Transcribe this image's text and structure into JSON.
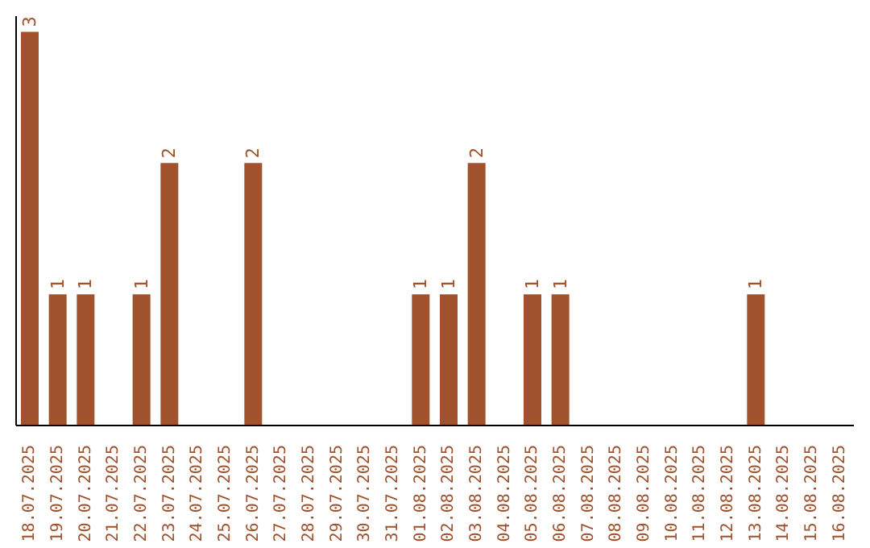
{
  "chart_data": {
    "type": "bar",
    "categories": [
      "18.07.2025",
      "19.07.2025",
      "20.07.2025",
      "21.07.2025",
      "22.07.2025",
      "23.07.2025",
      "24.07.2025",
      "25.07.2025",
      "26.07.2025",
      "27.07.2025",
      "28.07.2025",
      "29.07.2025",
      "30.07.2025",
      "31.07.2025",
      "01.08.2025",
      "02.08.2025",
      "03.08.2025",
      "04.08.2025",
      "05.08.2025",
      "06.08.2025",
      "07.08.2025",
      "08.08.2025",
      "09.08.2025",
      "10.08.2025",
      "11.08.2025",
      "12.08.2025",
      "13.08.2025",
      "14.08.2025",
      "15.08.2025",
      "16.08.2025"
    ],
    "values": [
      3,
      1,
      1,
      0,
      1,
      2,
      0,
      0,
      2,
      0,
      0,
      0,
      0,
      0,
      1,
      1,
      2,
      0,
      1,
      1,
      0,
      0,
      0,
      0,
      0,
      0,
      1,
      0,
      0,
      0
    ],
    "value_labels": [
      "3",
      "1",
      "1",
      null,
      "1",
      "2",
      null,
      null,
      "2",
      null,
      null,
      null,
      null,
      null,
      "1",
      "1",
      "2",
      null,
      "1",
      "1",
      null,
      null,
      null,
      null,
      null,
      null,
      "1",
      null,
      null,
      null
    ],
    "color": "#a0522d",
    "grid": false,
    "legend": false
  }
}
